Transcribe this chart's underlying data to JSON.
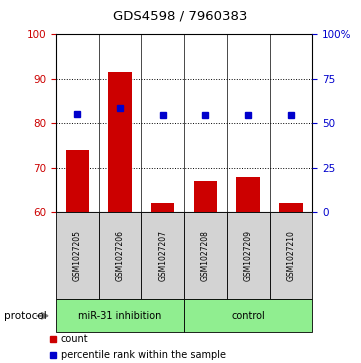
{
  "title": "GDS4598 / 7960383",
  "samples": [
    "GSM1027205",
    "GSM1027206",
    "GSM1027207",
    "GSM1027208",
    "GSM1027209",
    "GSM1027210"
  ],
  "bar_values": [
    74.0,
    91.5,
    62.2,
    67.0,
    68.0,
    62.2
  ],
  "bar_baseline": 60,
  "blue_values_left": [
    82.2,
    83.5,
    81.8,
    81.8,
    81.8,
    81.8
  ],
  "ylim_left": [
    60,
    100
  ],
  "ylim_right": [
    0,
    100
  ],
  "left_yticks": [
    60,
    70,
    80,
    90,
    100
  ],
  "right_yticks": [
    0,
    25,
    50,
    75,
    100
  ],
  "right_yticklabels": [
    "0",
    "25",
    "50",
    "75",
    "100%"
  ],
  "bar_color": "#cc0000",
  "blue_color": "#0000cc",
  "groups": [
    {
      "label": "miR-31 inhibition",
      "indices": [
        0,
        1,
        2
      ],
      "color": "#90ee90"
    },
    {
      "label": "control",
      "indices": [
        3,
        4,
        5
      ],
      "color": "#90ee90"
    }
  ],
  "protocol_label": "protocol",
  "legend_items": [
    {
      "color": "#cc0000",
      "label": "count"
    },
    {
      "color": "#0000cc",
      "label": "percentile rank within the sample"
    }
  ],
  "grid_yticks": [
    70,
    80,
    90
  ],
  "sample_box_color": "#d3d3d3"
}
